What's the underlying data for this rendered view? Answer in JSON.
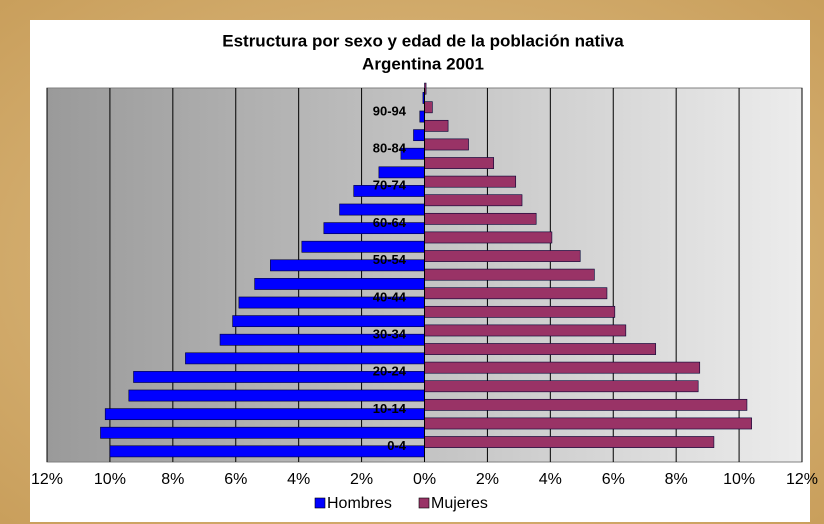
{
  "chart_data": {
    "type": "bar",
    "orientation": "horizontal",
    "title": [
      "Estructura por sexo y edad de la población nativa",
      "Argentina 2001"
    ],
    "categories": [
      "0-4",
      null,
      "10-14",
      null,
      "20-24",
      null,
      "30-34",
      null,
      "40-44",
      null,
      "50-54",
      null,
      "60-64",
      null,
      "70-74",
      null,
      "80-84",
      null,
      "90-94",
      null
    ],
    "series": [
      {
        "name": "Hombres",
        "color": "#0000ff",
        "values": [
          -10.0,
          -10.3,
          -10.15,
          -9.4,
          -9.25,
          -7.6,
          -6.5,
          -6.1,
          -5.9,
          -5.4,
          -4.9,
          -3.9,
          -3.2,
          -2.7,
          -2.25,
          -1.45,
          -0.75,
          -0.35,
          -0.15,
          -0.05
        ]
      },
      {
        "name": "Mujeres",
        "color": "#993366",
        "values": [
          9.2,
          10.4,
          10.25,
          8.7,
          8.75,
          7.35,
          6.4,
          6.05,
          5.8,
          5.4,
          4.95,
          4.05,
          3.55,
          3.1,
          2.9,
          2.2,
          1.4,
          0.75,
          0.25,
          0.05
        ]
      }
    ],
    "xlim": [
      -12,
      12
    ],
    "xticks": [
      {
        "value": -12,
        "label": "12%"
      },
      {
        "value": -10,
        "label": "10%"
      },
      {
        "value": -8,
        "label": "8%"
      },
      {
        "value": -6,
        "label": "6%"
      },
      {
        "value": -4,
        "label": "4%"
      },
      {
        "value": -2,
        "label": "2%"
      },
      {
        "value": 0,
        "label": "0%"
      },
      {
        "value": 2,
        "label": "2%"
      },
      {
        "value": 4,
        "label": "4%"
      },
      {
        "value": 6,
        "label": "6%"
      },
      {
        "value": 8,
        "label": "8%"
      },
      {
        "value": 10,
        "label": "10%"
      },
      {
        "value": 12,
        "label": "12%"
      }
    ],
    "grid": true,
    "legend": "bottom"
  }
}
